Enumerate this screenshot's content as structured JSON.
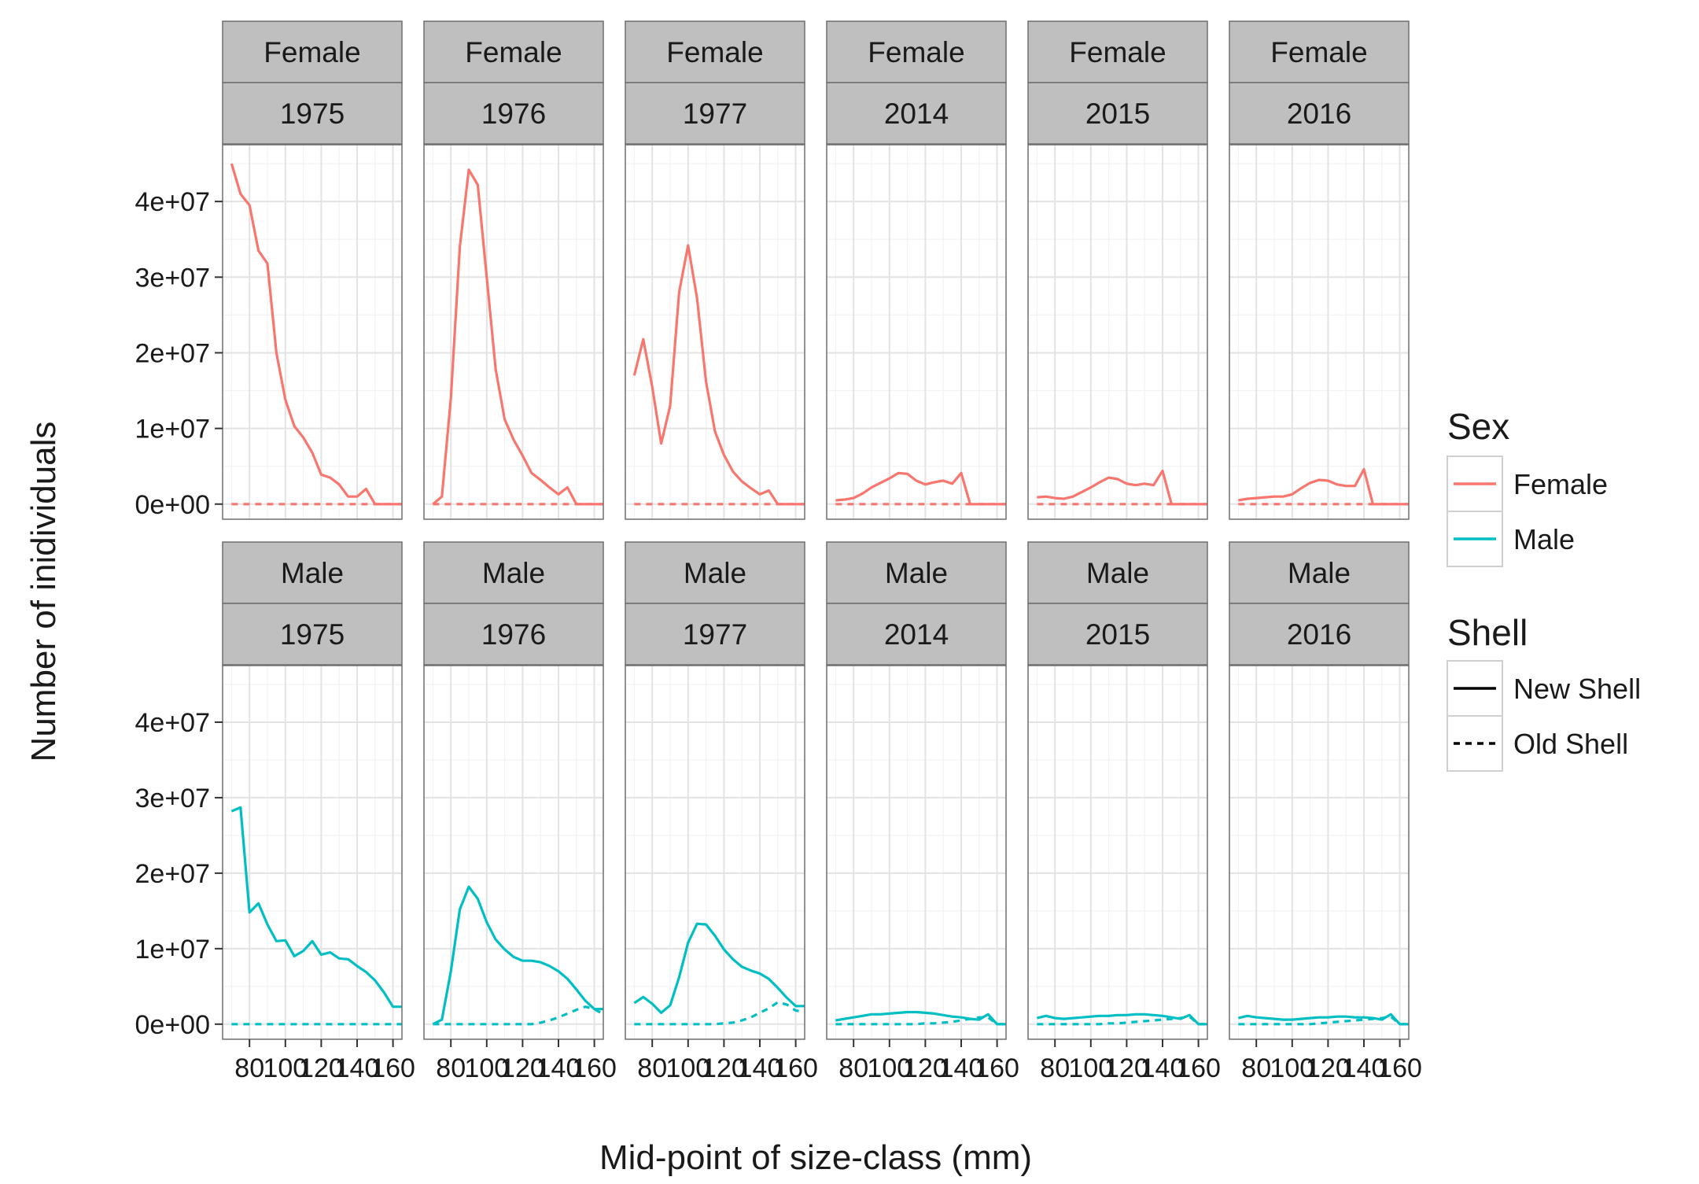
{
  "chart_data": {
    "type": "line",
    "xlabel": "Mid-point of size-class (mm)",
    "ylabel": "Number of inidividuals",
    "xlim": [
      65,
      165
    ],
    "ylim": [
      -2000000,
      47500000
    ],
    "x_ticks": [
      80,
      100,
      120,
      140,
      160
    ],
    "x_tick_labels": [
      "80",
      "100",
      "120",
      "140",
      "160"
    ],
    "y_ticks": [
      0,
      10000000,
      20000000,
      30000000,
      40000000
    ],
    "y_tick_labels": [
      "0e+00",
      "1e+07",
      "2e+07",
      "3e+07",
      "4e+07"
    ],
    "grid": true,
    "legend_position": "right",
    "colors": {
      "Female": "#F8766D",
      "Male": "#00BFC4"
    },
    "legend": {
      "sex_title": "Sex",
      "sex_items": [
        "Female",
        "Male"
      ],
      "shell_title": "Shell",
      "shell_items": [
        "New Shell",
        "Old Shell"
      ]
    },
    "x": [
      70,
      75,
      80,
      85,
      90,
      95,
      100,
      105,
      110,
      115,
      120,
      125,
      130,
      135,
      140,
      145,
      150,
      155,
      160,
      165
    ],
    "panels": [
      {
        "sex": "Female",
        "year": "1975",
        "new_shell": [
          45000000,
          41000000,
          39500000,
          33500000,
          31800000,
          20000000,
          13800000,
          10300000,
          8800000,
          6800000,
          3900000,
          3500000,
          2600000,
          1000000,
          1000000,
          2000000,
          0,
          0,
          0,
          0
        ],
        "old_shell": [
          0,
          0,
          0,
          0,
          0,
          0,
          0,
          0,
          0,
          0,
          0,
          0,
          0,
          0,
          0,
          0,
          0,
          0,
          0,
          0
        ]
      },
      {
        "sex": "Female",
        "year": "1976",
        "new_shell": [
          0,
          1000000,
          14000000,
          34000000,
          44200000,
          42200000,
          30000000,
          17800000,
          11200000,
          8500000,
          6400000,
          4100000,
          3200000,
          2200000,
          1300000,
          2200000,
          0,
          0,
          0,
          0
        ],
        "old_shell": [
          0,
          0,
          0,
          0,
          0,
          0,
          0,
          0,
          0,
          0,
          0,
          0,
          0,
          0,
          0,
          0,
          0,
          0,
          0,
          0
        ]
      },
      {
        "sex": "Female",
        "year": "1977",
        "new_shell": [
          17000000,
          21800000,
          15500000,
          8000000,
          13000000,
          28000000,
          34200000,
          27200000,
          16200000,
          9600000,
          6500000,
          4300000,
          3000000,
          2100000,
          1300000,
          1800000,
          0,
          0,
          0,
          0
        ],
        "old_shell": [
          0,
          0,
          0,
          0,
          0,
          0,
          0,
          0,
          0,
          0,
          0,
          0,
          0,
          0,
          0,
          0,
          0,
          0,
          0,
          0
        ]
      },
      {
        "sex": "Female",
        "year": "2014",
        "new_shell": [
          500000,
          600000,
          800000,
          1400000,
          2200000,
          2800000,
          3400000,
          4100000,
          4000000,
          3100000,
          2600000,
          2900000,
          3100000,
          2700000,
          4100000,
          0,
          0,
          0,
          0,
          0
        ],
        "old_shell": [
          0,
          0,
          0,
          0,
          0,
          0,
          0,
          0,
          0,
          0,
          0,
          0,
          0,
          0,
          0,
          0,
          0,
          0,
          0,
          0
        ]
      },
      {
        "sex": "Female",
        "year": "2015",
        "new_shell": [
          900000,
          1000000,
          800000,
          700000,
          1000000,
          1600000,
          2200000,
          2900000,
          3500000,
          3300000,
          2700000,
          2500000,
          2700000,
          2500000,
          4400000,
          0,
          0,
          0,
          0,
          0
        ],
        "old_shell": [
          0,
          0,
          0,
          0,
          0,
          0,
          0,
          0,
          0,
          0,
          0,
          0,
          0,
          0,
          0,
          0,
          0,
          0,
          0,
          0
        ]
      },
      {
        "sex": "Female",
        "year": "2016",
        "new_shell": [
          500000,
          700000,
          800000,
          900000,
          1000000,
          1000000,
          1300000,
          2100000,
          2800000,
          3200000,
          3100000,
          2600000,
          2400000,
          2400000,
          4600000,
          0,
          0,
          0,
          0,
          0
        ],
        "old_shell": [
          0,
          0,
          0,
          0,
          0,
          0,
          0,
          0,
          0,
          0,
          0,
          0,
          0,
          0,
          0,
          0,
          0,
          0,
          0,
          0
        ]
      },
      {
        "sex": "Male",
        "year": "1975",
        "new_shell": [
          28200000,
          28700000,
          14800000,
          16000000,
          13200000,
          11000000,
          11100000,
          9000000,
          9700000,
          11000000,
          9200000,
          9500000,
          8700000,
          8600000,
          7700000,
          6900000,
          5800000,
          4200000,
          2300000,
          2300000
        ],
        "old_shell": [
          0,
          0,
          0,
          0,
          0,
          0,
          0,
          0,
          0,
          0,
          0,
          0,
          0,
          0,
          0,
          0,
          0,
          0,
          0,
          0
        ]
      },
      {
        "sex": "Male",
        "year": "1976",
        "new_shell": [
          0,
          600000,
          7000000,
          15200000,
          18200000,
          16600000,
          13500000,
          11200000,
          9900000,
          8900000,
          8400000,
          8400000,
          8200000,
          7700000,
          7000000,
          6000000,
          4600000,
          3100000,
          2000000,
          2000000
        ],
        "old_shell": [
          0,
          0,
          0,
          0,
          0,
          0,
          0,
          0,
          0,
          0,
          0,
          0,
          200000,
          500000,
          900000,
          1400000,
          1900000,
          2300000,
          2000000,
          1300000
        ]
      },
      {
        "sex": "Male",
        "year": "1977",
        "new_shell": [
          2800000,
          3600000,
          2700000,
          1500000,
          2500000,
          6200000,
          10800000,
          13300000,
          13200000,
          11700000,
          9900000,
          8600000,
          7600000,
          7100000,
          6700000,
          6000000,
          4800000,
          3500000,
          2400000,
          2400000
        ],
        "old_shell": [
          0,
          0,
          0,
          0,
          0,
          0,
          0,
          0,
          0,
          0,
          100000,
          200000,
          500000,
          900000,
          1500000,
          2100000,
          2900000,
          2600000,
          1800000,
          1600000
        ]
      },
      {
        "sex": "Male",
        "year": "2014",
        "new_shell": [
          500000,
          700000,
          900000,
          1100000,
          1300000,
          1300000,
          1400000,
          1500000,
          1600000,
          1600000,
          1500000,
          1400000,
          1200000,
          1000000,
          900000,
          700000,
          600000,
          1300000,
          0,
          0
        ],
        "old_shell": [
          0,
          0,
          0,
          0,
          0,
          0,
          0,
          0,
          0,
          0,
          100000,
          100000,
          200000,
          300000,
          500000,
          700000,
          900000,
          900000,
          0,
          0
        ]
      },
      {
        "sex": "Male",
        "year": "2015",
        "new_shell": [
          800000,
          1100000,
          800000,
          700000,
          800000,
          900000,
          1000000,
          1100000,
          1100000,
          1200000,
          1200000,
          1300000,
          1300000,
          1200000,
          1100000,
          900000,
          700000,
          1200000,
          0,
          0
        ],
        "old_shell": [
          0,
          0,
          0,
          0,
          0,
          0,
          0,
          0,
          100000,
          100000,
          200000,
          300000,
          400000,
          500000,
          600000,
          700000,
          800000,
          1000000,
          0,
          0
        ]
      },
      {
        "sex": "Male",
        "year": "2016",
        "new_shell": [
          800000,
          1100000,
          900000,
          800000,
          700000,
          600000,
          600000,
          700000,
          800000,
          900000,
          900000,
          1000000,
          1000000,
          900000,
          900000,
          800000,
          600000,
          1300000,
          0,
          0
        ],
        "old_shell": [
          0,
          0,
          0,
          0,
          0,
          0,
          0,
          0,
          0,
          100000,
          200000,
          300000,
          400000,
          500000,
          600000,
          700000,
          800000,
          1000000,
          0,
          0
        ]
      }
    ]
  }
}
